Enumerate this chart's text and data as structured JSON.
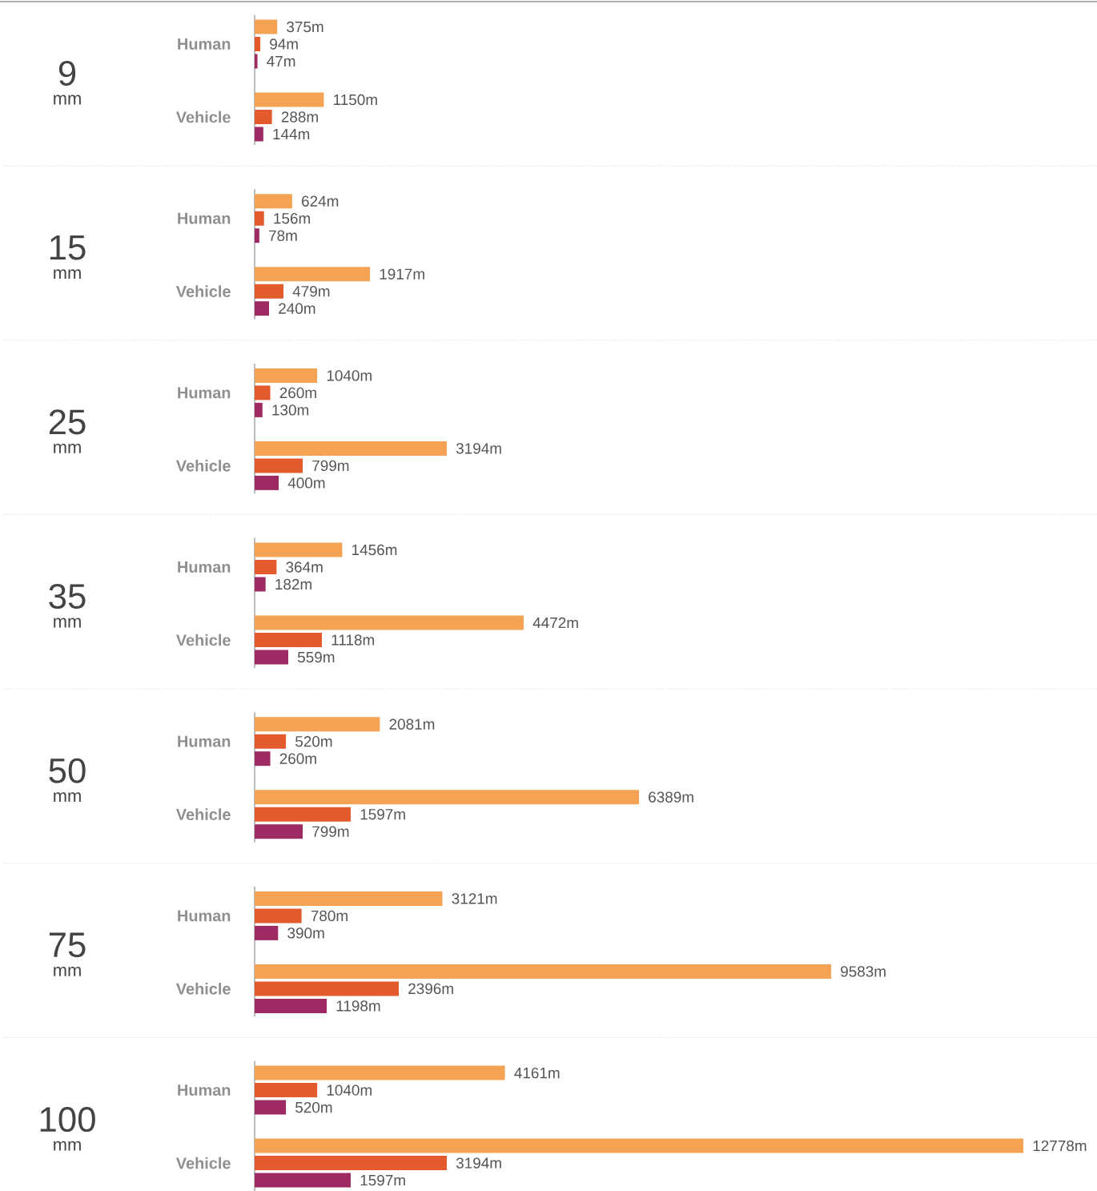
{
  "chart_data": [
    {
      "type": "bar",
      "orientation": "horizontal",
      "title": "9",
      "subtitle": "mm",
      "categories": [
        "Human",
        "Vehicle"
      ],
      "tick_labels": "y",
      "series": [
        {
          "color": "#f4a355",
          "values": [
            375,
            1150
          ],
          "value_labels": [
            "375m",
            "1150m"
          ]
        },
        {
          "color": "#e35a2d",
          "values": [
            94,
            288
          ],
          "value_labels": [
            "94m",
            "288m"
          ]
        },
        {
          "color": "#9e2a63",
          "values": [
            47,
            144
          ],
          "value_labels": [
            "47m",
            "144m"
          ]
        }
      ]
    },
    {
      "type": "bar",
      "orientation": "horizontal",
      "title": "15",
      "subtitle": "mm",
      "categories": [
        "Human",
        "Vehicle"
      ],
      "tick_labels": "y",
      "series": [
        {
          "color": "#f4a355",
          "values": [
            624,
            1917
          ],
          "value_labels": [
            "624m",
            "1917m"
          ]
        },
        {
          "color": "#e35a2d",
          "values": [
            156,
            479
          ],
          "value_labels": [
            "156m",
            "479m"
          ]
        },
        {
          "color": "#9e2a63",
          "values": [
            78,
            240
          ],
          "value_labels": [
            "78m",
            "240m"
          ]
        }
      ]
    },
    {
      "type": "bar",
      "orientation": "horizontal",
      "title": "25",
      "subtitle": "mm",
      "categories": [
        "Human",
        "Vehicle"
      ],
      "tick_labels": "y",
      "series": [
        {
          "color": "#f4a355",
          "values": [
            1040,
            3194
          ],
          "value_labels": [
            "1040m",
            "3194m"
          ]
        },
        {
          "color": "#e35a2d",
          "values": [
            260,
            799
          ],
          "value_labels": [
            "260m",
            "799m"
          ]
        },
        {
          "color": "#9e2a63",
          "values": [
            130,
            400
          ],
          "value_labels": [
            "130m",
            "400m"
          ]
        }
      ]
    },
    {
      "type": "bar",
      "orientation": "horizontal",
      "title": "35",
      "subtitle": "mm",
      "categories": [
        "Human",
        "Vehicle"
      ],
      "tick_labels": "y",
      "series": [
        {
          "color": "#f4a355",
          "values": [
            1456,
            4472
          ],
          "value_labels": [
            "1456m",
            "4472m"
          ]
        },
        {
          "color": "#e35a2d",
          "values": [
            364,
            1118
          ],
          "value_labels": [
            "364m",
            "1118m"
          ]
        },
        {
          "color": "#9e2a63",
          "values": [
            182,
            559
          ],
          "value_labels": [
            "182m",
            "559m"
          ]
        }
      ]
    },
    {
      "type": "bar",
      "orientation": "horizontal",
      "title": "50",
      "subtitle": "mm",
      "categories": [
        "Human",
        "Vehicle"
      ],
      "tick_labels": "y",
      "series": [
        {
          "color": "#f4a355",
          "values": [
            2081,
            6389
          ],
          "value_labels": [
            "2081m",
            "6389m"
          ]
        },
        {
          "color": "#e35a2d",
          "values": [
            520,
            1597
          ],
          "value_labels": [
            "520m",
            "1597m"
          ]
        },
        {
          "color": "#9e2a63",
          "values": [
            260,
            799
          ],
          "value_labels": [
            "260m",
            "799m"
          ]
        }
      ]
    },
    {
      "type": "bar",
      "orientation": "horizontal",
      "title": "75",
      "subtitle": "mm",
      "categories": [
        "Human",
        "Vehicle"
      ],
      "tick_labels": "y",
      "series": [
        {
          "color": "#f4a355",
          "values": [
            3121,
            9583
          ],
          "value_labels": [
            "3121m",
            "9583m"
          ]
        },
        {
          "color": "#e35a2d",
          "values": [
            780,
            2396
          ],
          "value_labels": [
            "780m",
            "2396m"
          ]
        },
        {
          "color": "#9e2a63",
          "values": [
            390,
            1198
          ],
          "value_labels": [
            "390m",
            "1198m"
          ]
        }
      ]
    },
    {
      "type": "bar",
      "orientation": "horizontal",
      "title": "100",
      "subtitle": "mm",
      "categories": [
        "Human",
        "Vehicle"
      ],
      "tick_labels": "y",
      "series": [
        {
          "color": "#f4a355",
          "values": [
            4161,
            12778
          ],
          "value_labels": [
            "4161m",
            "12778m"
          ]
        },
        {
          "color": "#e35a2d",
          "values": [
            1040,
            3194
          ],
          "value_labels": [
            "1040m",
            "3194m"
          ]
        },
        {
          "color": "#9e2a63",
          "values": [
            520,
            1597
          ],
          "value_labels": [
            "520m",
            "1597m"
          ]
        }
      ]
    }
  ]
}
